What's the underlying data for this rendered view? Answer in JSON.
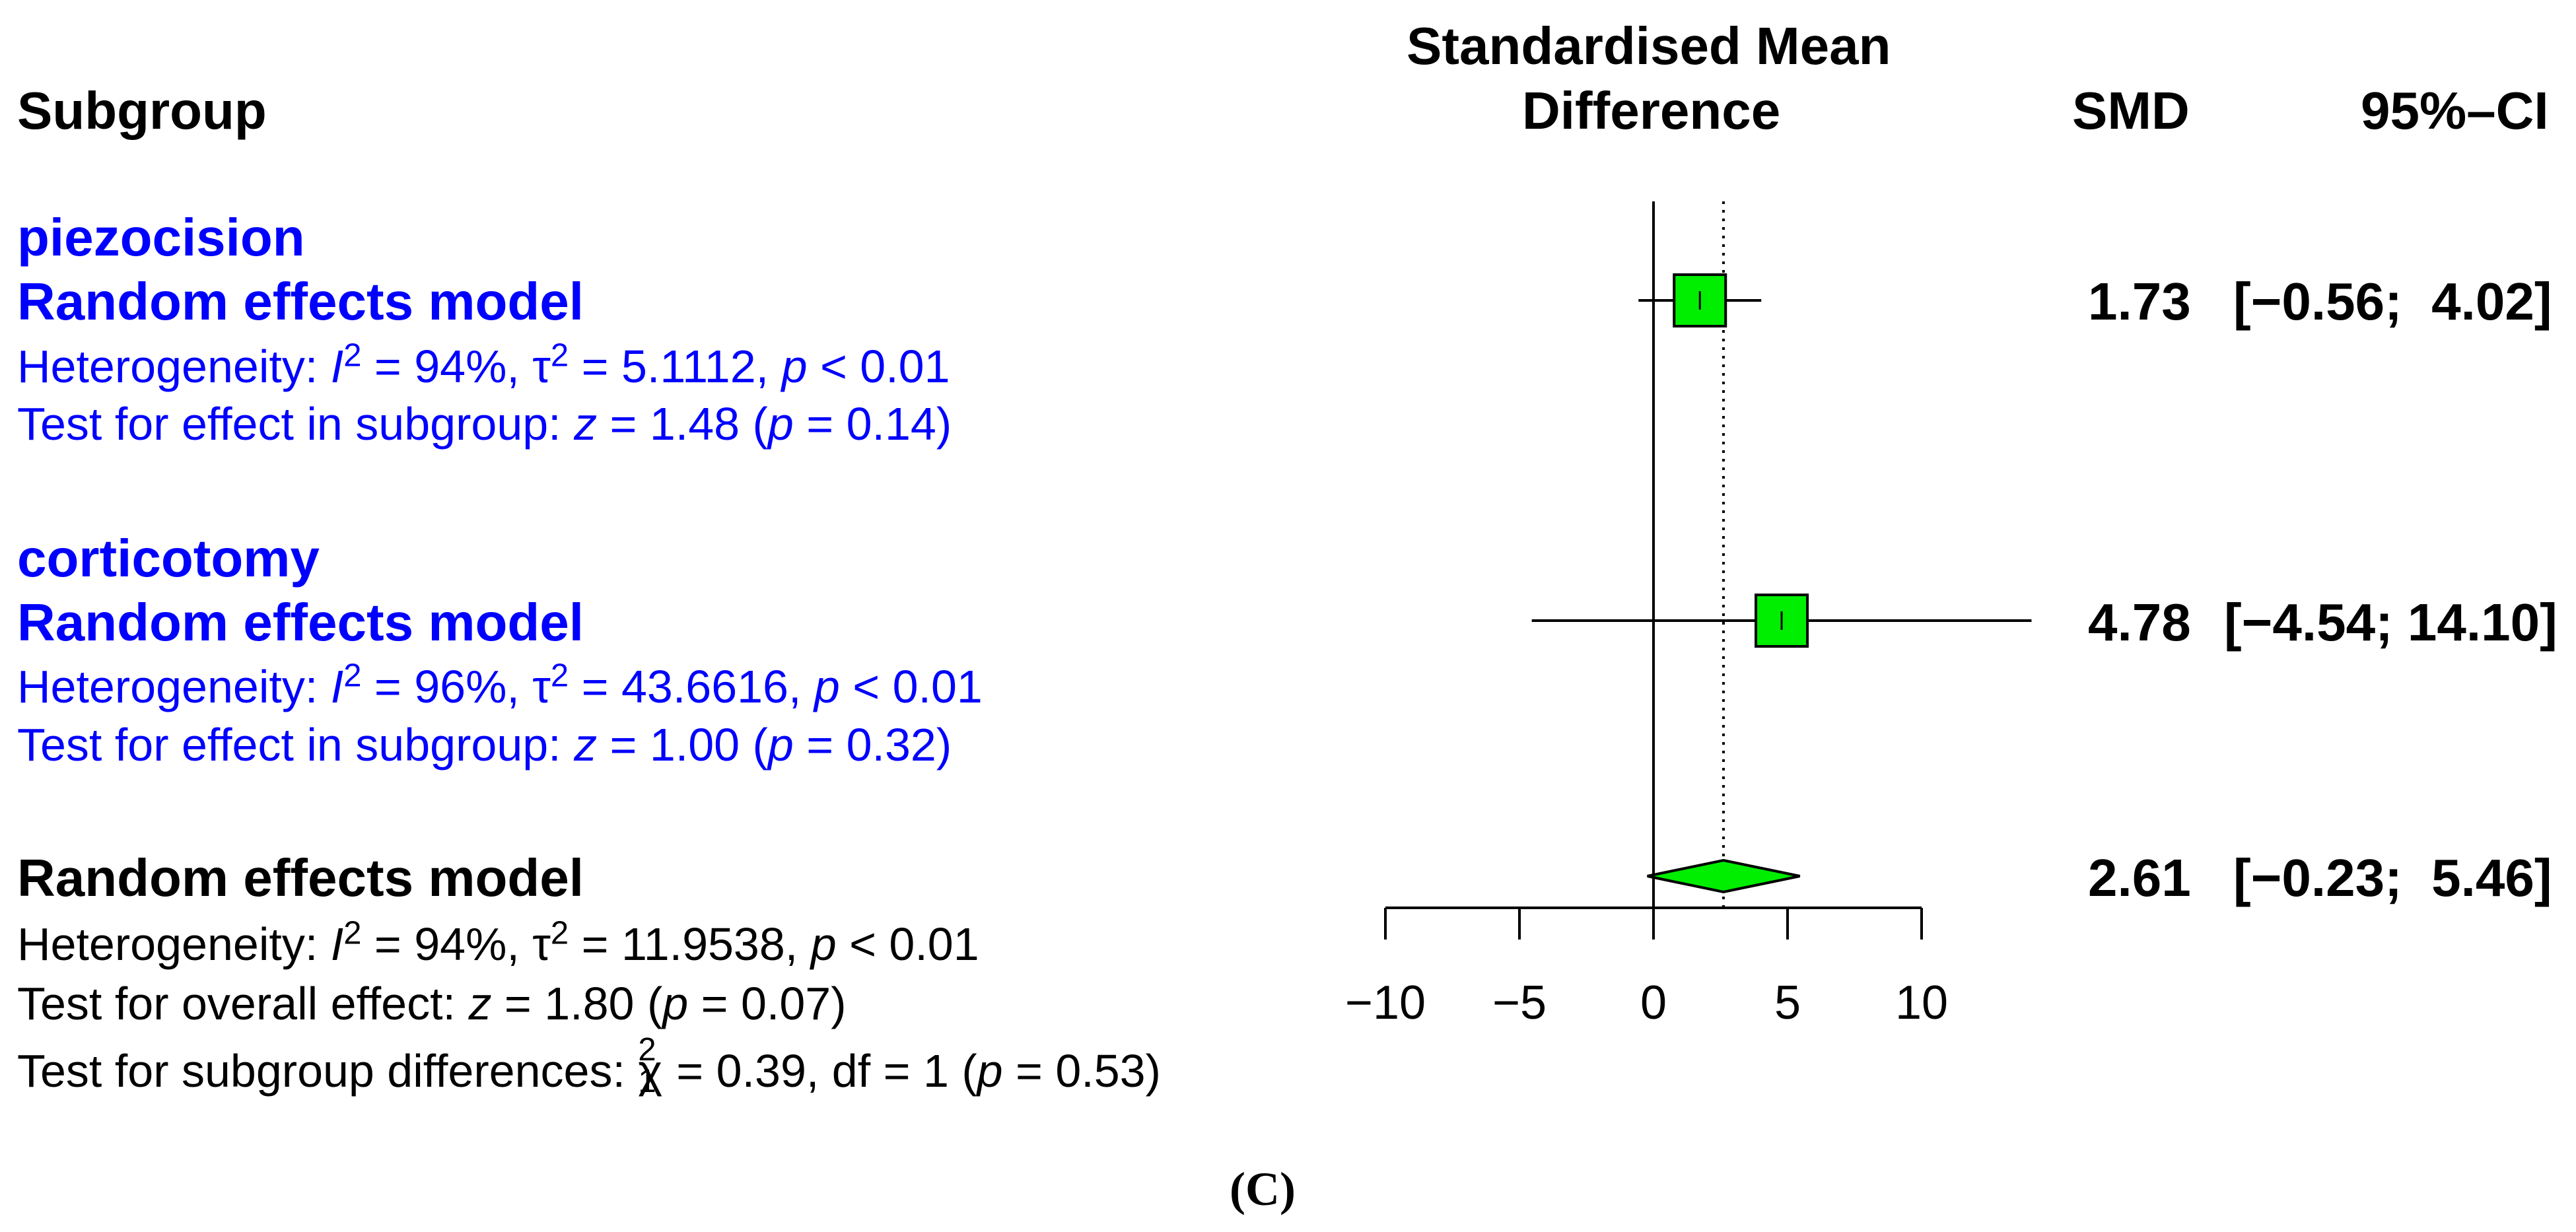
{
  "header": {
    "subgroup_label": "Subgroup",
    "effect_label_line1": "Standardised Mean",
    "effect_label_line2": "Difference",
    "smd_label": "SMD",
    "ci_label": "95%–CI"
  },
  "subgroups": [
    {
      "name": "piezocision",
      "model_label": "Random effects model",
      "het_prefix": "Heterogeneity: ",
      "i2": "94%",
      "tau2": "5.1112",
      "p_het": "< 0.01",
      "test_prefix": "Test for effect in subgroup: ",
      "z": "1.48",
      "p_test": "= 0.14",
      "smd": "1.73",
      "ci": "[−0.56;  4.02]"
    },
    {
      "name": "corticotomy",
      "model_label": "Random effects model",
      "het_prefix": "Heterogeneity: ",
      "i2": "96%",
      "tau2": "43.6616",
      "p_het": "< 0.01",
      "test_prefix": "Test for effect in subgroup: ",
      "z": "1.00",
      "p_test": "= 0.32",
      "smd": "4.78",
      "ci": "[−4.54; 14.10]"
    }
  ],
  "overall": {
    "model_label": "Random effects model",
    "het_prefix": "Heterogeneity: ",
    "i2": "94%",
    "tau2": "11.9538",
    "p_het": "< 0.01",
    "test_prefix": "Test for overall effect: ",
    "z": "1.80",
    "p_test": "= 0.07",
    "diff_prefix": "Test for subgroup differences: ",
    "chi2": "0.39",
    "df": "1",
    "p_diff": "= 0.53",
    "smd": "2.61",
    "ci": "[−0.23;  5.46]"
  },
  "caption": "(C)",
  "colors": {
    "subgroup_text": "#0000ff",
    "box_fill": "#00ee00",
    "diamond_fill": "#00ee00",
    "line": "#000000"
  },
  "chart_data": {
    "type": "forest",
    "xlabel": "Standardised Mean Difference",
    "xlim": [
      -10,
      10
    ],
    "ticks": [
      -10,
      -5,
      0,
      5,
      10
    ],
    "tick_labels": [
      "−10",
      "−5",
      "0",
      "5",
      "10"
    ],
    "series": [
      {
        "name": "piezocision",
        "estimate": 1.73,
        "lower": -0.56,
        "upper": 4.02,
        "marker": "square"
      },
      {
        "name": "corticotomy",
        "estimate": 4.78,
        "lower": -4.54,
        "upper": 14.1,
        "marker": "square"
      },
      {
        "name": "Random effects model",
        "estimate": 2.61,
        "lower": -0.23,
        "upper": 5.46,
        "marker": "diamond"
      }
    ],
    "reference_line": 0,
    "dotted_line": 2.61
  }
}
